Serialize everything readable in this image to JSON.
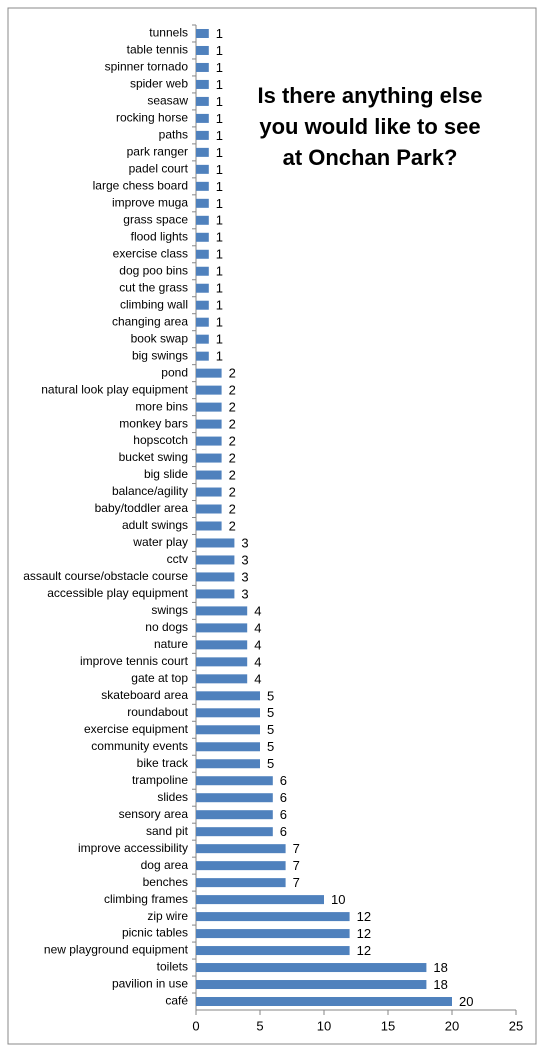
{
  "chart_data": {
    "type": "bar",
    "orientation": "horizontal",
    "title": "Is there anything else you would like to see at Onchan Park?",
    "categories": [
      "tunnels",
      "table tennis",
      "spinner tornado",
      "spider web",
      "seasaw",
      "rocking horse",
      "paths",
      "park ranger",
      "padel court",
      "large chess board",
      "improve muga",
      "grass space",
      "flood lights",
      "exercise class",
      "dog poo bins",
      "cut the grass",
      "climbing wall",
      "changing area",
      "book swap",
      "big swings",
      "pond",
      "natural look play equipment",
      "more bins",
      "monkey bars",
      "hopscotch",
      "bucket swing",
      "big slide",
      "balance/agility",
      "baby/toddler area",
      "adult swings",
      "water play",
      "cctv",
      "assault course/obstacle course",
      "accessible play equipment",
      "swings",
      "no dogs",
      "nature",
      "improve tennis court",
      "gate at top",
      "skateboard area",
      "roundabout",
      "exercise equipment",
      "community events",
      "bike track",
      "trampoline",
      "slides",
      "sensory area",
      "sand pit",
      "improve accessibility",
      "dog area",
      "benches",
      "climbing frames",
      "zip wire",
      "picnic tables",
      "new playground equipment",
      "toilets",
      "pavilion in use",
      "café"
    ],
    "values": [
      1,
      1,
      1,
      1,
      1,
      1,
      1,
      1,
      1,
      1,
      1,
      1,
      1,
      1,
      1,
      1,
      1,
      1,
      1,
      1,
      2,
      2,
      2,
      2,
      2,
      2,
      2,
      2,
      2,
      2,
      3,
      3,
      3,
      3,
      4,
      4,
      4,
      4,
      4,
      5,
      5,
      5,
      5,
      5,
      6,
      6,
      6,
      6,
      7,
      7,
      7,
      10,
      12,
      12,
      12,
      18,
      18,
      20
    ],
    "color": "#4f81bd",
    "xlim": [
      0,
      25
    ],
    "xticks": [
      0,
      5,
      10,
      15,
      20,
      25
    ],
    "grid": false
  }
}
